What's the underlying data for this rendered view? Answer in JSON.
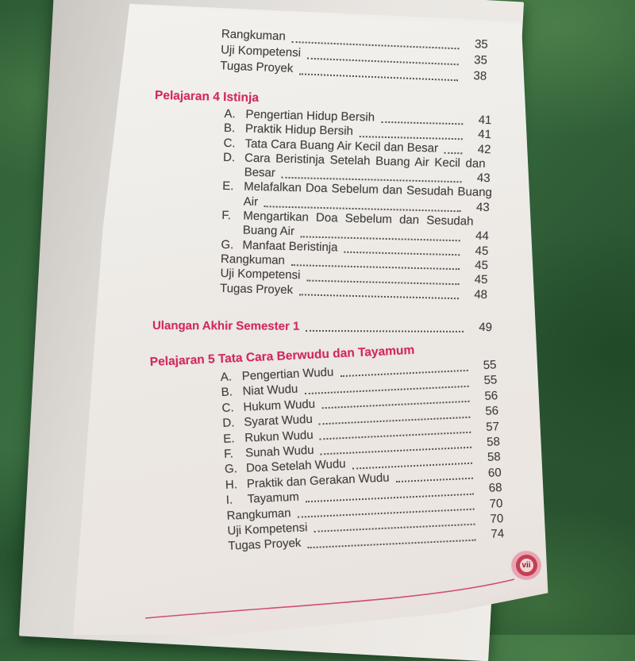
{
  "page_badge": "vii",
  "colors": {
    "heading_red": "#d22a5f",
    "badge_ring": "#c33f55",
    "curve_pink": "#cc3f63"
  },
  "toc": {
    "prelude_items": [
      {
        "label": "Rangkuman",
        "page": "35"
      },
      {
        "label": "Uji Kompetensi",
        "page": "35"
      },
      {
        "label": "Tugas Proyek",
        "page": "38"
      }
    ],
    "chapter4": {
      "title": "Pelajaran 4 Istinja",
      "items": [
        {
          "letter": "A.",
          "text": "Pengertian Hidup Bersih",
          "page": "41"
        },
        {
          "letter": "B.",
          "text": "Praktik Hidup Bersih",
          "page": "41"
        },
        {
          "letter": "C.",
          "text": "Tata Cara Buang Air Kecil dan Besar",
          "page": "42"
        },
        {
          "letter": "D.",
          "line1": "Cara Beristinja Setelah Buang Air Kecil dan",
          "line2": "Besar",
          "page": "43"
        },
        {
          "letter": "E.",
          "line1": "Melafalkan Doa Sebelum dan Sesudah Buang",
          "line2": "Air",
          "page": "43"
        },
        {
          "letter": "F.",
          "line1": "Mengartikan Doa Sebelum dan Sesudah",
          "line2": "Buang Air",
          "page": "44"
        },
        {
          "letter": "G.",
          "text": "Manfaat Beristinja",
          "page": "45"
        },
        {
          "letter": "",
          "text": "Rangkuman",
          "page": "45"
        },
        {
          "letter": "",
          "text": "Uji Kompetensi",
          "page": "45"
        },
        {
          "letter": "",
          "text": "Tugas Proyek",
          "page": "48"
        }
      ]
    },
    "ulangan": {
      "title": "Ulangan Akhir Semester 1",
      "page": "49"
    },
    "chapter5": {
      "title": "Pelajaran 5 Tata Cara Berwudu dan Tayamum",
      "items": [
        {
          "letter": "A.",
          "text": "Pengertian Wudu",
          "page": "55"
        },
        {
          "letter": "B.",
          "text": "Niat Wudu",
          "page": "55"
        },
        {
          "letter": "C.",
          "text": "Hukum Wudu",
          "page": "56"
        },
        {
          "letter": "D.",
          "text": "Syarat Wudu",
          "page": "56"
        },
        {
          "letter": "E.",
          "text": "Rukun Wudu",
          "page": "57"
        },
        {
          "letter": "F.",
          "text": "Sunah Wudu",
          "page": "58"
        },
        {
          "letter": "G.",
          "text": "Doa Setelah Wudu",
          "page": "58"
        },
        {
          "letter": "H.",
          "text": "Praktik dan Gerakan Wudu",
          "page": "60"
        },
        {
          "letter": "I.",
          "text": "Tayamum",
          "page": "68"
        },
        {
          "letter": "",
          "text": "Rangkuman",
          "page": "70"
        },
        {
          "letter": "",
          "text": "Uji Kompetensi",
          "page": "70"
        },
        {
          "letter": "",
          "text": "Tugas Proyek",
          "page": "74"
        }
      ]
    }
  }
}
